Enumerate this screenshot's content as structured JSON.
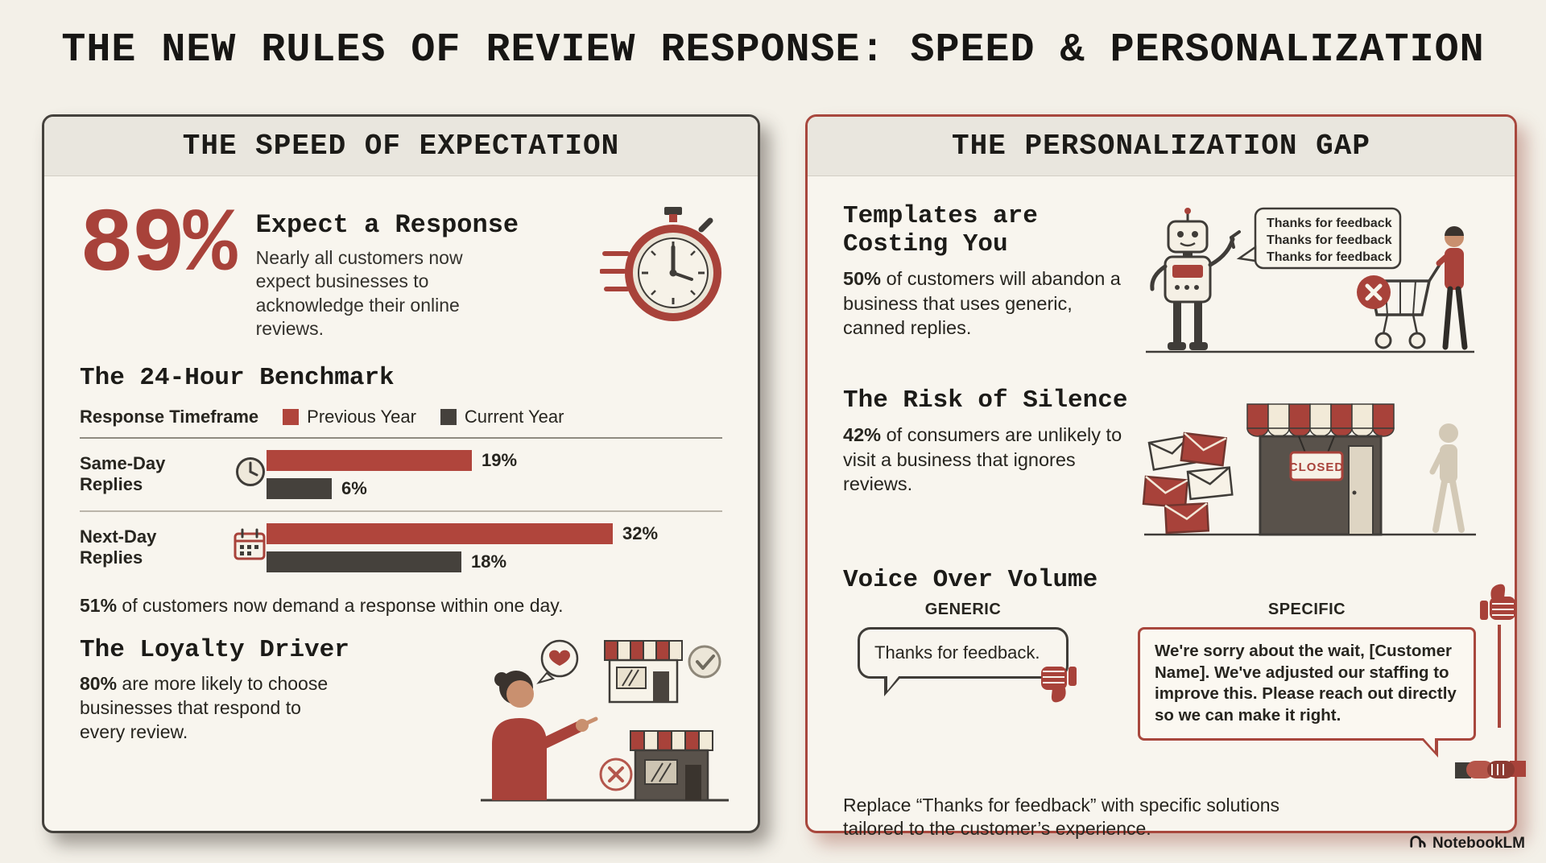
{
  "page": {
    "title": "THE NEW RULES OF REVIEW RESPONSE: SPEED & PERSONALIZATION"
  },
  "brand": {
    "name": "NotebookLM"
  },
  "colors": {
    "accent_red": "#a8423a",
    "dark": "#3f3c38",
    "paper": "#f8f5ee"
  },
  "left": {
    "header": "THE SPEED OF EXPECTATION",
    "stat": {
      "value": "89%",
      "heading": "Expect a Response",
      "body": "Nearly all customers now expect businesses to acknowledge their online reviews."
    },
    "benchmark": {
      "heading": "The 24-Hour Benchmark",
      "legend_title": "Response Timeframe",
      "note_strong": "51%",
      "note_rest": " of customers now demand a response within one day."
    },
    "loyalty": {
      "heading": "The Loyalty Driver",
      "strong": "80%",
      "rest": " are more likely to choose businesses that respond to every review."
    }
  },
  "right": {
    "header": "THE PERSONALIZATION GAP",
    "templates": {
      "heading": "Templates are Costing You",
      "strong": "50%",
      "rest": " of customers will abandon a business that uses generic, canned replies.",
      "robot_speech": [
        "Thanks for feedback",
        "Thanks for feedback",
        "Thanks for feedback"
      ]
    },
    "silence": {
      "heading": "The Risk of Silence",
      "strong": "42%",
      "rest": " of consumers are unlikely to visit a business that ignores reviews.",
      "closed_sign": "CLOSED"
    },
    "voice": {
      "heading": "Voice Over Volume",
      "generic_label": "GENERIC",
      "generic_text": "Thanks for feedback.",
      "specific_label": "SPECIFIC",
      "specific_text": "We're sorry about the wait, [Customer Name]. We've adjusted our staffing to improve this. Please reach out directly so we can make it right.",
      "footer": "Replace “Thanks for feedback” with specific solutions tailored to the customer’s experience."
    }
  },
  "chart_data": {
    "type": "bar",
    "orientation": "horizontal",
    "title": "The 24-Hour Benchmark",
    "categories": [
      "Same-Day Replies",
      "Next-Day Replies"
    ],
    "series": [
      {
        "name": "Previous Year",
        "color": "#b0453c",
        "values": [
          19,
          32
        ],
        "labels": [
          "19%",
          "32%"
        ]
      },
      {
        "name": "Current Year",
        "color": "#45413c",
        "values": [
          6,
          18
        ],
        "labels": [
          "6%",
          "18%"
        ]
      }
    ],
    "xlim": [
      0,
      35
    ],
    "value_suffix": "%",
    "grid": false,
    "legend_position": "top"
  }
}
